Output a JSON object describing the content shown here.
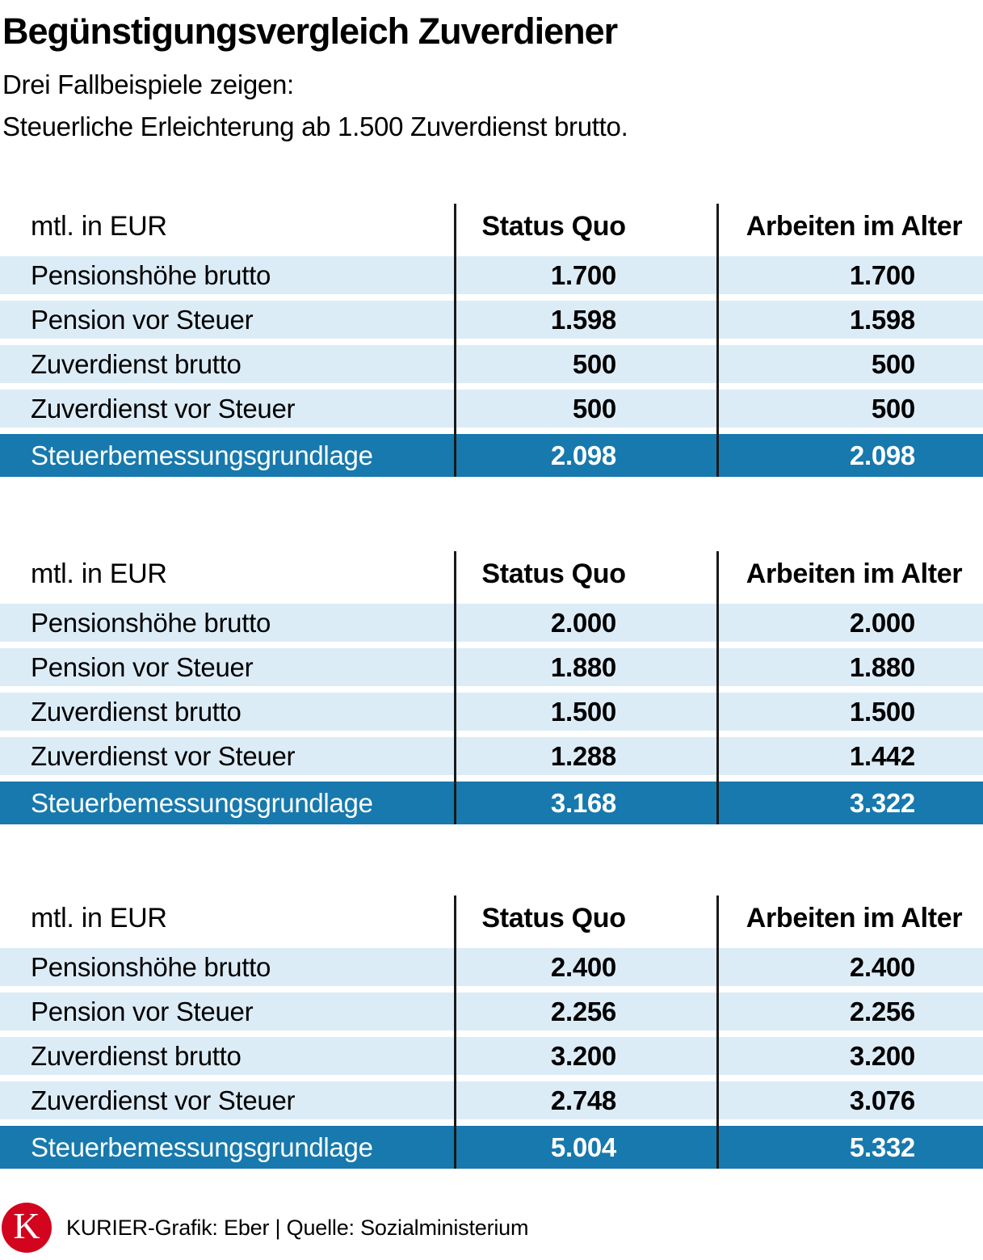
{
  "header": {
    "title": "Begünstigungsvergleich Zuverdiener",
    "subtitle1": "Drei Fallbeispiele zeigen:",
    "subtitle2": "Steuerliche Erleichterung ab 1.500 Zuverdienst brutto."
  },
  "colors": {
    "row_highlight_blue": "#1779ad",
    "row_light_blue": "#dcecf7",
    "brand_red": "#d2041e",
    "divider_black": "#1a1a1a",
    "text_black": "#000000"
  },
  "chart_data": {
    "type": "table",
    "title": "Begünstigungsvergleich Zuverdiener",
    "subtitle": "Drei Fallbeispiele zeigen: Steuerliche Erleichterung ab 1.500 Zuverdienst brutto.",
    "unit": "mtl. in EUR",
    "tables": [
      {
        "columns": [
          "mtl. in EUR",
          "Status Quo",
          "Arbeiten im Alter"
        ],
        "rows": [
          {
            "label": "Pensionshöhe brutto",
            "values": [
              "1.700",
              "1.700"
            ],
            "highlight": false
          },
          {
            "label": "Pension vor Steuer",
            "values": [
              "1.598",
              "1.598"
            ],
            "highlight": false
          },
          {
            "label": "Zuverdienst brutto",
            "values": [
              "500",
              "500"
            ],
            "highlight": false
          },
          {
            "label": "Zuverdienst vor Steuer",
            "values": [
              "500",
              "500"
            ],
            "highlight": false
          },
          {
            "label": "Steuerbemessungsgrundlage",
            "values": [
              "2.098",
              "2.098"
            ],
            "highlight": true
          }
        ]
      },
      {
        "columns": [
          "mtl. in EUR",
          "Status Quo",
          "Arbeiten im Alter"
        ],
        "rows": [
          {
            "label": "Pensionshöhe brutto",
            "values": [
              "2.000",
              "2.000"
            ],
            "highlight": false
          },
          {
            "label": "Pension vor Steuer",
            "values": [
              "1.880",
              "1.880"
            ],
            "highlight": false
          },
          {
            "label": "Zuverdienst brutto",
            "values": [
              "1.500",
              "1.500"
            ],
            "highlight": false
          },
          {
            "label": "Zuverdienst vor Steuer",
            "values": [
              "1.288",
              "1.442"
            ],
            "highlight": false
          },
          {
            "label": "Steuerbemessungsgrundlage",
            "values": [
              "3.168",
              "3.322"
            ],
            "highlight": true
          }
        ]
      },
      {
        "columns": [
          "mtl. in EUR",
          "Status Quo",
          "Arbeiten im Alter"
        ],
        "rows": [
          {
            "label": "Pensionshöhe brutto",
            "values": [
              "2.400",
              "2.400"
            ],
            "highlight": false
          },
          {
            "label": "Pension vor Steuer",
            "values": [
              "2.256",
              "2.256"
            ],
            "highlight": false
          },
          {
            "label": "Zuverdienst brutto",
            "values": [
              "3.200",
              "3.200"
            ],
            "highlight": false
          },
          {
            "label": "Zuverdienst vor Steuer",
            "values": [
              "2.748",
              "3.076"
            ],
            "highlight": false
          },
          {
            "label": "Steuerbemessungsgrundlage",
            "values": [
              "5.004",
              "5.332"
            ],
            "highlight": true
          }
        ]
      }
    ]
  },
  "footer": {
    "logo_letter": "K",
    "credit": "KURIER-Grafik: Eber | Quelle: Sozialministerium"
  }
}
